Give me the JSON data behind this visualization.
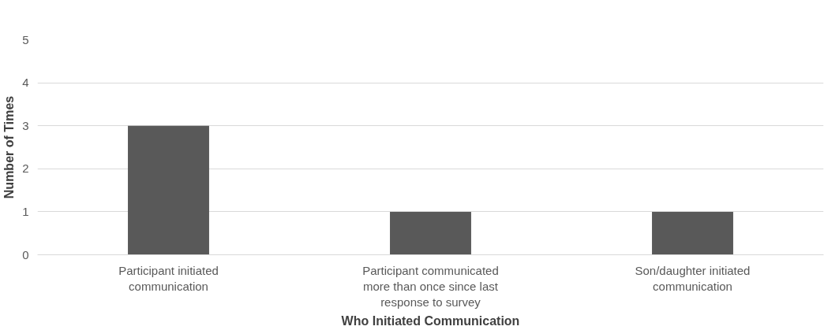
{
  "chart_data": {
    "type": "bar",
    "xlabel": "Who Initiated Communication",
    "ylabel": "Number of Times",
    "categories": [
      "Participant initiated communication",
      "Participant communicated more than once since last response to survey",
      "Son/daughter initiated communication"
    ],
    "values": [
      3,
      1,
      1
    ],
    "color": "#595959",
    "ylim": [
      0,
      5
    ],
    "yticks": [
      0,
      1,
      2,
      3,
      4,
      5
    ],
    "grid": "y"
  }
}
